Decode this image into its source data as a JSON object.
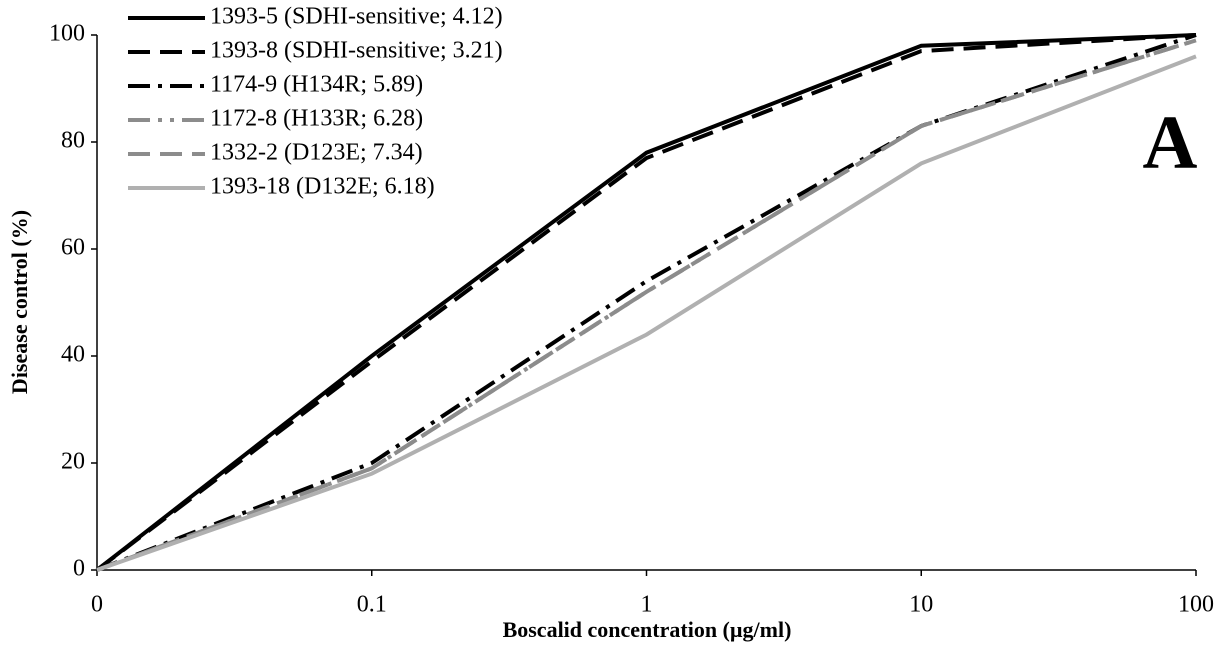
{
  "chart_data": {
    "type": "line",
    "annotation": "A",
    "xlabel": "Boscalid concentration (µg/ml)",
    "ylabel": "Disease control (%)",
    "categories": [
      "0",
      "0.1",
      "1",
      "10",
      "100"
    ],
    "ylim": [
      0,
      100
    ],
    "yticks": [
      0,
      20,
      40,
      60,
      80,
      100
    ],
    "series": [
      {
        "name": "1393-5 (SDHI-sensitive; 4.12)",
        "color": "#000000",
        "style": "solid",
        "values": [
          0,
          40,
          78,
          98,
          100
        ]
      },
      {
        "name": "1393-8 (SDHI-sensitive; 3.21)",
        "color": "#000000",
        "style": "dashed",
        "values": [
          0,
          39,
          77,
          97,
          100
        ]
      },
      {
        "name": "1174-9 (H134R; 5.89)",
        "color": "#000000",
        "style": "dashdot",
        "values": [
          0,
          20,
          54,
          83,
          100
        ]
      },
      {
        "name": "1172-8 (H133R; 6.28)",
        "color": "#8c8c8c",
        "style": "dashdotdot",
        "values": [
          0,
          19,
          52,
          83,
          99
        ]
      },
      {
        "name": "1332-2 (D123E; 7.34)",
        "color": "#8c8c8c",
        "style": "dashed",
        "values": [
          0,
          19,
          52,
          83,
          99
        ]
      },
      {
        "name": "1393-18 (D132E; 6.18)",
        "color": "#b0b0b0",
        "style": "solid",
        "values": [
          0,
          18,
          44,
          76,
          96
        ]
      }
    ]
  }
}
